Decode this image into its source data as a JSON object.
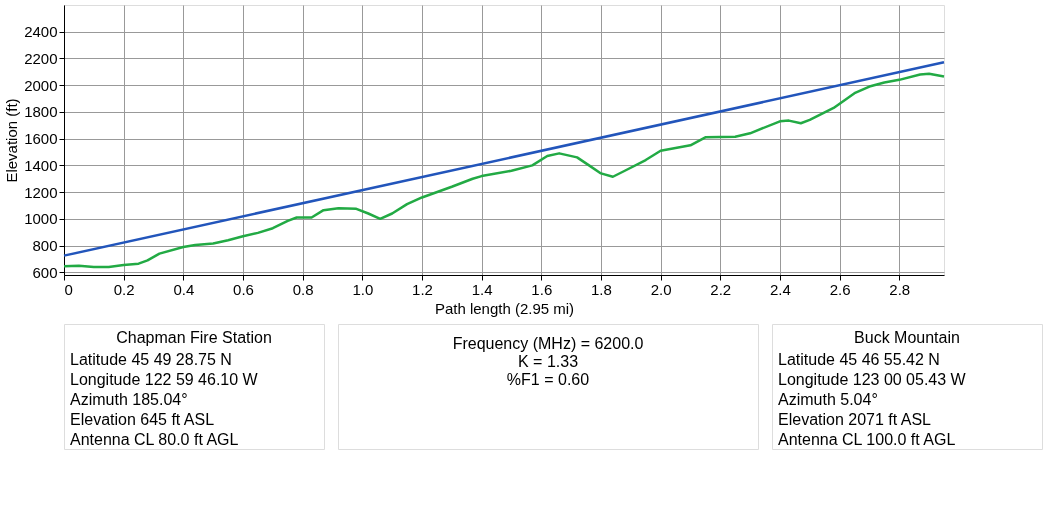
{
  "chart_data": [
    {
      "type": "line",
      "xlabel": "Path length (2.95 mi)",
      "ylabel": "Elevation (ft)",
      "xlim": [
        0,
        2.95
      ],
      "xticks": [
        0,
        0.2,
        0.4,
        0.6,
        0.8,
        {
          "value": 1.0,
          "label": "1.0"
        },
        1.2,
        1.4,
        1.6,
        1.8,
        {
          "value": 2.0,
          "label": "2.0"
        },
        2.2,
        2.4,
        2.6,
        2.8
      ],
      "ylim": [
        580,
        2600
      ],
      "yticks": [
        600,
        800,
        1000,
        1200,
        1400,
        1600,
        1800,
        2000,
        2200,
        2400
      ],
      "grid": true,
      "legend": false,
      "marker": "none",
      "line_style": "solid",
      "series": [
        {
          "color": "#22aa44",
          "x": [
            0,
            0.05,
            0.1,
            0.15,
            0.2,
            0.25,
            0.28,
            0.32,
            0.4,
            0.44,
            0.5,
            0.55,
            0.6,
            0.65,
            0.7,
            0.75,
            0.78,
            0.83,
            0.87,
            0.92,
            0.98,
            1.02,
            1.06,
            1.1,
            1.15,
            1.2,
            1.3,
            1.37,
            1.4,
            1.5,
            1.57,
            1.62,
            1.66,
            1.72,
            1.76,
            1.8,
            1.84,
            1.88,
            1.95,
            2.0,
            2.05,
            2.1,
            2.15,
            2.25,
            2.3,
            2.4,
            2.43,
            2.47,
            2.5,
            2.58,
            2.65,
            2.7,
            2.75,
            2.8,
            2.87,
            2.9,
            2.95
          ],
          "values": [
            645,
            650,
            640,
            640,
            655,
            665,
            690,
            740,
            790,
            805,
            815,
            840,
            870,
            895,
            930,
            985,
            1010,
            1010,
            1065,
            1080,
            1075,
            1040,
            1000,
            1040,
            1110,
            1160,
            1240,
            1300,
            1320,
            1360,
            1400,
            1470,
            1490,
            1460,
            1400,
            1340,
            1315,
            1360,
            1440,
            1510,
            1530,
            1550,
            1610,
            1615,
            1640,
            1730,
            1735,
            1715,
            1740,
            1830,
            1940,
            1990,
            2020,
            2040,
            2080,
            2085,
            2065
          ]
        },
        {
          "color": "#2255bb",
          "x": [
            0,
            2.95
          ],
          "values": [
            725,
            2171
          ]
        }
      ]
    },
    {
      "type": "other",
      "title": "Chapman Fire Station",
      "annotations": [
        "Latitude 45 49 28.75 N",
        "Longitude 122 59 46.10 W",
        "Azimuth 185.04°",
        "Elevation 645 ft ASL",
        "Antenna CL 80.0 ft AGL"
      ]
    },
    {
      "type": "other",
      "annotations": [
        "Frequency (MHz) = 6200.0",
        "K = 1.33",
        "%F1 = 0.60"
      ]
    },
    {
      "type": "other",
      "title": "Buck Mountain",
      "annotations": [
        "Latitude 45 46 55.42 N",
        "Longitude 123 00 05.43 W",
        "Azimuth 5.04°",
        "Elevation 2071 ft ASL",
        "Antenna CL 100.0 ft AGL"
      ]
    }
  ]
}
